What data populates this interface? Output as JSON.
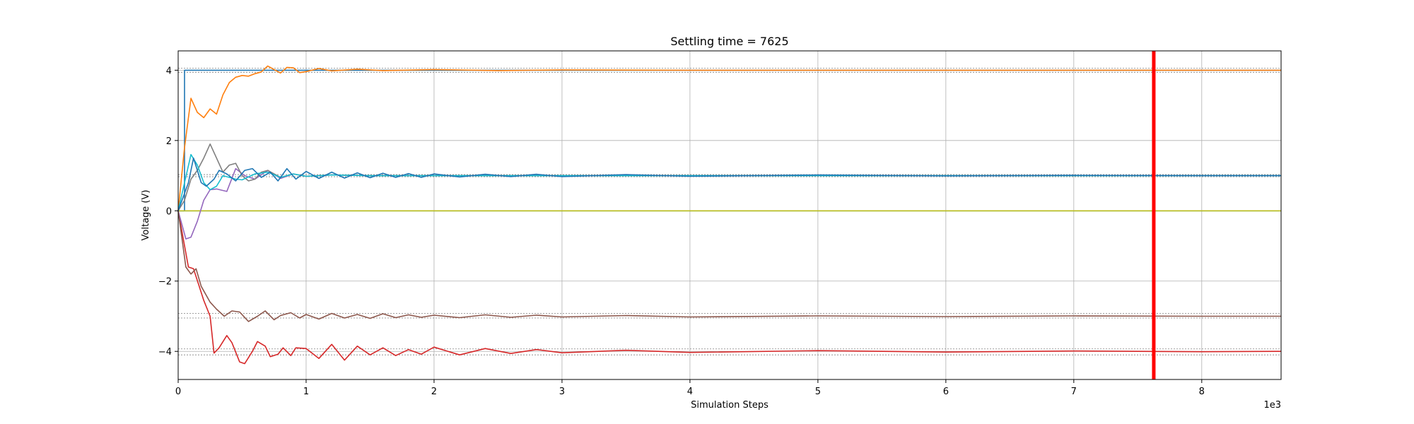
{
  "chart_data": {
    "type": "line",
    "title": "Settling time = 7625",
    "xlabel": "Simulation Steps",
    "ylabel": "Voltage (V)",
    "x_offset_label": "1e3",
    "xlim": [
      0,
      8.62
    ],
    "ylim": [
      -4.8,
      4.55
    ],
    "x_ticks": [
      0,
      1,
      2,
      3,
      4,
      5,
      6,
      7,
      8
    ],
    "y_ticks": [
      -4,
      -2,
      0,
      2,
      4
    ],
    "grid": true,
    "settling_marker": {
      "x": 7.625,
      "color": "#ff0000"
    },
    "tolerance_bands": [
      {
        "lower": 3.94,
        "upper": 4.06
      },
      {
        "lower": 0.97,
        "upper": 1.03
      },
      {
        "lower": -3.05,
        "upper": -2.92
      },
      {
        "lower": -4.1,
        "upper": -3.93
      }
    ],
    "series": [
      {
        "color": "#1f77b4",
        "x": [
          0,
          0.05,
          0.05,
          0.12,
          0.3,
          8.62
        ],
        "y": [
          0,
          0,
          4,
          4,
          4,
          4
        ]
      },
      {
        "color": "#ff7f0e",
        "x": [
          0,
          0.05,
          0.1,
          0.15,
          0.2,
          0.25,
          0.3,
          0.35,
          0.4,
          0.45,
          0.5,
          0.55,
          0.6,
          0.65,
          0.7,
          0.75,
          0.8,
          0.85,
          0.9,
          0.95,
          1.0,
          1.1,
          1.2,
          1.4,
          1.6,
          2.0,
          2.5,
          3.0,
          4.0,
          8.62
        ],
        "y": [
          0,
          1.8,
          3.2,
          2.8,
          2.65,
          2.9,
          2.75,
          3.3,
          3.65,
          3.8,
          3.85,
          3.83,
          3.9,
          3.95,
          4.12,
          4.02,
          3.92,
          4.08,
          4.07,
          3.93,
          3.96,
          4.05,
          3.98,
          4.03,
          3.99,
          4.02,
          3.99,
          4.01,
          4.0,
          4.0
        ]
      },
      {
        "color": "#2ca02c",
        "x": [
          0,
          8.62
        ],
        "y": [
          0,
          0
        ]
      },
      {
        "color": "#bcbd22",
        "x": [
          0,
          8.62
        ],
        "y": [
          0,
          0
        ]
      },
      {
        "color": "#d62728",
        "x": [
          0,
          0.08,
          0.12,
          0.16,
          0.2,
          0.25,
          0.28,
          0.32,
          0.38,
          0.42,
          0.48,
          0.52,
          0.58,
          0.62,
          0.68,
          0.72,
          0.78,
          0.82,
          0.88,
          0.92,
          1.0,
          1.1,
          1.2,
          1.3,
          1.4,
          1.5,
          1.6,
          1.7,
          1.8,
          1.9,
          2.0,
          2.2,
          2.4,
          2.6,
          2.8,
          3.0,
          3.5,
          4.0,
          5.0,
          6.0,
          7.0,
          8.0,
          8.62
        ],
        "y": [
          0,
          -1.6,
          -1.65,
          -2.1,
          -2.55,
          -3.0,
          -4.05,
          -3.9,
          -3.55,
          -3.75,
          -4.3,
          -4.35,
          -4.0,
          -3.72,
          -3.85,
          -4.15,
          -4.08,
          -3.9,
          -4.12,
          -3.9,
          -3.92,
          -4.2,
          -3.8,
          -4.25,
          -3.85,
          -4.1,
          -3.9,
          -4.12,
          -3.95,
          -4.08,
          -3.88,
          -4.1,
          -3.92,
          -4.06,
          -3.95,
          -4.04,
          -3.97,
          -4.03,
          -3.98,
          -4.02,
          -3.99,
          -4.01,
          -4.0
        ]
      },
      {
        "color": "#9467bd",
        "x": [
          0,
          0.06,
          0.1,
          0.15,
          0.2,
          0.25,
          0.3,
          0.38,
          0.45,
          0.52,
          0.6,
          0.7,
          0.8,
          0.9,
          1.0,
          1.2,
          1.5,
          2.0,
          2.5,
          8.62
        ],
        "y": [
          0,
          -0.8,
          -0.75,
          -0.3,
          0.3,
          0.6,
          0.62,
          0.55,
          1.2,
          1.0,
          0.9,
          1.15,
          0.92,
          1.05,
          0.98,
          1.02,
          1.0,
          1.0,
          1.0,
          1.0
        ]
      },
      {
        "color": "#8c564b",
        "x": [
          0,
          0.06,
          0.1,
          0.14,
          0.18,
          0.25,
          0.3,
          0.36,
          0.42,
          0.48,
          0.55,
          0.62,
          0.68,
          0.75,
          0.8,
          0.88,
          0.95,
          1.0,
          1.1,
          1.2,
          1.3,
          1.4,
          1.5,
          1.6,
          1.7,
          1.8,
          1.9,
          2.0,
          2.2,
          2.4,
          2.6,
          2.8,
          3.0,
          3.5,
          4.0,
          5.0,
          6.0,
          7.0,
          8.0,
          8.62
        ],
        "y": [
          0,
          -1.6,
          -1.8,
          -1.65,
          -2.15,
          -2.6,
          -2.8,
          -3.0,
          -2.85,
          -2.88,
          -3.15,
          -3.0,
          -2.85,
          -3.1,
          -2.98,
          -2.9,
          -3.05,
          -2.95,
          -3.08,
          -2.92,
          -3.05,
          -2.95,
          -3.06,
          -2.93,
          -3.04,
          -2.96,
          -3.03,
          -2.97,
          -3.04,
          -2.96,
          -3.03,
          -2.97,
          -3.02,
          -2.98,
          -3.02,
          -2.99,
          -3.01,
          -2.99,
          -3.0,
          -3.0
        ]
      },
      {
        "color": "#7f7f7f",
        "x": [
          0,
          0.05,
          0.1,
          0.15,
          0.2,
          0.25,
          0.3,
          0.35,
          0.4,
          0.45,
          0.5,
          0.55,
          0.6,
          0.65,
          0.7,
          0.8,
          0.9,
          1.0,
          1.2,
          1.5,
          2.0,
          2.5,
          8.62
        ],
        "y": [
          0,
          0.3,
          0.9,
          1.15,
          1.5,
          1.9,
          1.5,
          1.1,
          1.3,
          1.35,
          1.0,
          0.85,
          0.9,
          1.1,
          1.15,
          0.95,
          1.05,
          0.98,
          1.02,
          1.0,
          1.0,
          1.0,
          1.0
        ]
      },
      {
        "color": "#17becf",
        "x": [
          0,
          0.05,
          0.1,
          0.15,
          0.2,
          0.25,
          0.3,
          0.35,
          0.4,
          0.45,
          0.5,
          0.6,
          0.7,
          0.8,
          0.9,
          1.0,
          1.2,
          1.5,
          2.0,
          8.62
        ],
        "y": [
          0,
          0.8,
          1.6,
          1.3,
          0.8,
          0.6,
          0.7,
          1.0,
          0.95,
          0.9,
          0.88,
          1.05,
          1.1,
          0.95,
          1.05,
          0.98,
          1.02,
          1.0,
          1.0,
          1.0
        ]
      },
      {
        "color": "#1f77b4",
        "x": [
          0,
          0.08,
          0.12,
          0.18,
          0.22,
          0.28,
          0.32,
          0.38,
          0.45,
          0.52,
          0.58,
          0.65,
          0.72,
          0.78,
          0.85,
          0.92,
          1.0,
          1.1,
          1.2,
          1.3,
          1.4,
          1.5,
          1.6,
          1.7,
          1.8,
          1.9,
          2.0,
          2.2,
          2.4,
          2.6,
          2.8,
          3.0,
          3.5,
          4.0,
          5.0,
          6.0,
          7.0,
          8.0,
          8.62
        ],
        "y": [
          0,
          0.8,
          1.5,
          0.8,
          0.7,
          0.9,
          1.15,
          1.05,
          0.85,
          1.15,
          1.2,
          0.95,
          1.1,
          0.85,
          1.2,
          0.9,
          1.12,
          0.92,
          1.1,
          0.93,
          1.08,
          0.94,
          1.07,
          0.95,
          1.06,
          0.95,
          1.05,
          0.96,
          1.04,
          0.97,
          1.04,
          0.97,
          1.03,
          0.98,
          1.02,
          0.99,
          1.01,
          1.0,
          1.0
        ]
      }
    ]
  }
}
